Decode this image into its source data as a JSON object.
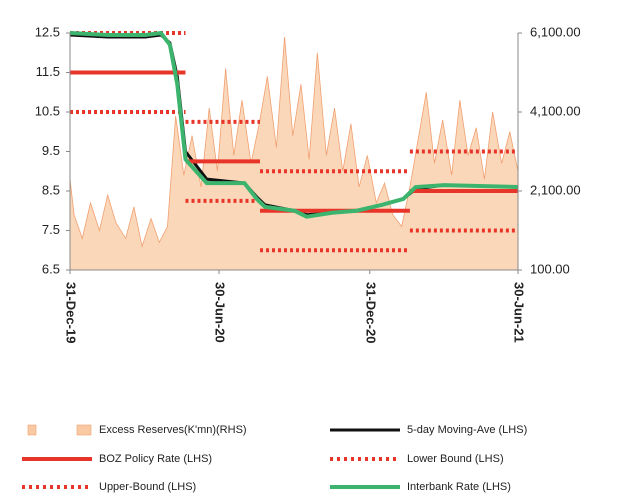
{
  "chart_data": {
    "type": "line",
    "xlim": [
      "2019-12-31",
      "2021-06-30"
    ],
    "xticks": [
      {
        "value": "2019-12-31",
        "label": "31-Dec-19"
      },
      {
        "value": "2020-06-30",
        "label": "30-Jun-20"
      },
      {
        "value": "2020-12-31",
        "label": "31-Dec-20"
      },
      {
        "value": "2021-06-30",
        "label": "30-Jun-21"
      }
    ],
    "ylim": [
      6.5,
      12.5
    ],
    "yticks": [
      6.5,
      7.5,
      8.5,
      9.5,
      10.5,
      11.5,
      12.5
    ],
    "y2lim": [
      100,
      6100
    ],
    "y2ticks": [
      {
        "value": 100,
        "label": "100.00"
      },
      {
        "value": 2100,
        "label": "2,100.00"
      },
      {
        "value": 4100,
        "label": "4,100.00"
      },
      {
        "value": 6100,
        "label": "6,100.00"
      }
    ],
    "legend": "bottom",
    "series": [
      {
        "name": "Excess Reserves(K'mn)(RHS)",
        "kind": "area",
        "axis": "y2",
        "color": "#f9c9a3",
        "x": [
          "2019-12-31",
          "2020-01-05",
          "2020-01-15",
          "2020-01-25",
          "2020-02-05",
          "2020-02-15",
          "2020-02-25",
          "2020-03-08",
          "2020-03-18",
          "2020-03-28",
          "2020-04-08",
          "2020-04-18",
          "2020-04-28",
          "2020-05-08",
          "2020-05-18",
          "2020-05-28",
          "2020-06-08",
          "2020-06-18",
          "2020-06-28",
          "2020-07-08",
          "2020-07-18",
          "2020-07-28",
          "2020-08-08",
          "2020-08-18",
          "2020-08-28",
          "2020-09-08",
          "2020-09-18",
          "2020-09-28",
          "2020-10-08",
          "2020-10-18",
          "2020-10-28",
          "2020-11-08",
          "2020-11-18",
          "2020-11-28",
          "2020-12-08",
          "2020-12-18",
          "2020-12-28",
          "2021-01-08",
          "2021-01-18",
          "2021-01-28",
          "2021-02-08",
          "2021-02-18",
          "2021-02-28",
          "2021-03-10",
          "2021-03-20",
          "2021-03-30",
          "2021-04-10",
          "2021-04-20",
          "2021-04-30",
          "2021-05-10",
          "2021-05-20",
          "2021-05-30",
          "2021-06-10",
          "2021-06-20",
          "2021-06-30"
        ],
        "values": [
          2400,
          1500,
          900,
          1800,
          1100,
          2000,
          1300,
          900,
          1700,
          700,
          1400,
          800,
          1200,
          4000,
          2500,
          3500,
          2200,
          4200,
          2600,
          5200,
          3000,
          4400,
          2800,
          3800,
          5000,
          3200,
          6000,
          3500,
          4800,
          2900,
          5600,
          3000,
          4200,
          2600,
          3800,
          2200,
          3000,
          1800,
          2300,
          1500,
          1200,
          2200,
          3400,
          4600,
          2800,
          3900,
          2500,
          4400,
          3000,
          3700,
          2400,
          4100,
          2800,
          3600,
          2600
        ]
      },
      {
        "name": "5-day Moving-Ave (LHS)",
        "kind": "line",
        "color": "#111111",
        "width": 3,
        "x": [
          "2019-12-31",
          "2020-02-15",
          "2020-04-01",
          "2020-04-20",
          "2020-05-01",
          "2020-05-10",
          "2020-05-20",
          "2020-06-15",
          "2020-07-31",
          "2020-08-15",
          "2020-08-25",
          "2020-09-30",
          "2020-10-15",
          "2020-11-15",
          "2020-12-15",
          "2021-01-15",
          "2021-02-10",
          "2021-02-25",
          "2021-04-01",
          "2021-06-30"
        ],
        "values": [
          12.45,
          12.4,
          12.4,
          12.45,
          12.25,
          11.4,
          9.5,
          8.8,
          8.7,
          8.35,
          8.15,
          8.0,
          7.9,
          7.95,
          8.0,
          8.15,
          8.3,
          8.55,
          8.65,
          8.6
        ]
      },
      {
        "name": "BOZ Policy Rate (LHS)",
        "kind": "line",
        "color": "#e8352a",
        "width": 4,
        "x": [
          "2019-12-31",
          "2020-05-20",
          "2020-05-20",
          "2020-05-20",
          "2020-08-19",
          "2020-08-19",
          "2020-08-19",
          "2021-02-18",
          "2021-02-18",
          "2021-02-18",
          "2021-06-30"
        ],
        "values": [
          11.5,
          11.5,
          null,
          9.25,
          9.25,
          null,
          8.0,
          8.0,
          null,
          8.5,
          8.5
        ]
      },
      {
        "name": "Lower Bound (LHS)",
        "kind": "line",
        "color": "#e8352a",
        "width": 4,
        "style": "dotted",
        "x": [
          "2019-12-31",
          "2020-05-20",
          "2020-05-20",
          "2020-05-20",
          "2020-08-19",
          "2020-08-19",
          "2020-08-19",
          "2021-02-18",
          "2021-02-18",
          "2021-02-18",
          "2021-06-30"
        ],
        "values": [
          10.5,
          10.5,
          null,
          8.25,
          8.25,
          null,
          7.0,
          7.0,
          null,
          7.5,
          7.5
        ]
      },
      {
        "name": "Upper-Bound (LHS)",
        "kind": "line",
        "color": "#e8352a",
        "width": 4,
        "style": "dotted",
        "x": [
          "2019-12-31",
          "2020-05-20",
          "2020-05-20",
          "2020-05-20",
          "2020-08-19",
          "2020-08-19",
          "2020-08-19",
          "2021-02-18",
          "2021-02-18",
          "2021-02-18",
          "2021-06-30"
        ],
        "values": [
          12.5,
          12.5,
          null,
          10.25,
          10.25,
          null,
          9.0,
          9.0,
          null,
          9.5,
          9.5
        ]
      },
      {
        "name": "Interbank Rate (LHS)",
        "kind": "line",
        "color": "#3cb46e",
        "width": 4,
        "x": [
          "2019-12-31",
          "2020-02-15",
          "2020-04-01",
          "2020-04-20",
          "2020-05-01",
          "2020-05-10",
          "2020-05-20",
          "2020-06-15",
          "2020-07-31",
          "2020-08-15",
          "2020-08-25",
          "2020-09-30",
          "2020-10-15",
          "2020-11-15",
          "2020-12-15",
          "2021-01-15",
          "2021-02-10",
          "2021-02-25",
          "2021-04-01",
          "2021-06-30"
        ],
        "values": [
          12.5,
          12.45,
          12.45,
          12.5,
          12.2,
          11.2,
          9.3,
          8.7,
          8.7,
          8.3,
          8.1,
          8.0,
          7.85,
          7.95,
          8.0,
          8.15,
          8.3,
          8.6,
          8.65,
          8.6
        ]
      }
    ]
  }
}
